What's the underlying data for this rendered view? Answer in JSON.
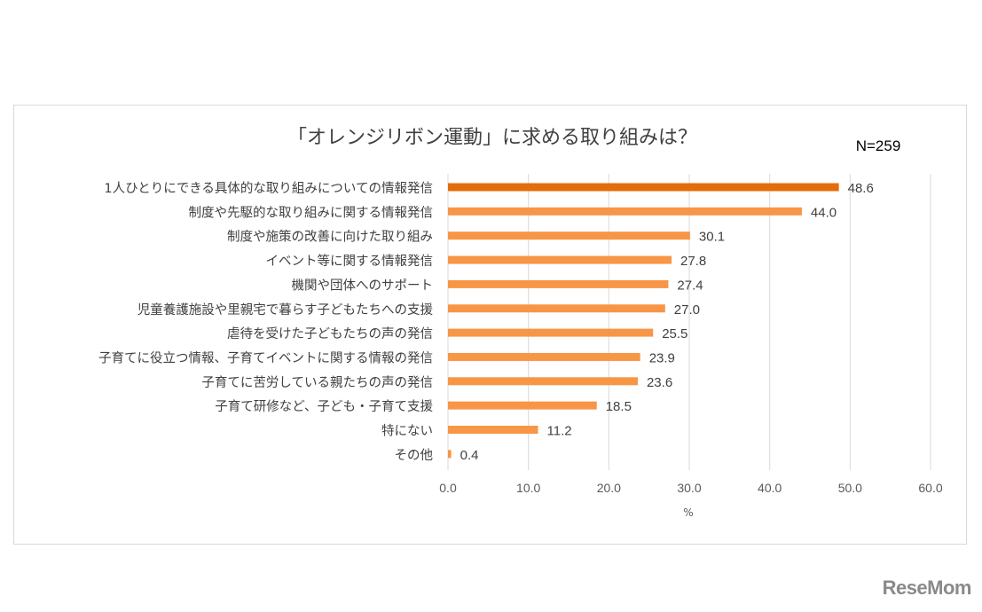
{
  "chart_data": {
    "type": "bar",
    "orientation": "horizontal",
    "title": "「オレンジリボン運動」に求める取り組みは？",
    "annotation": "N=259",
    "xlabel": "%",
    "ylabel": "",
    "xlim": [
      0,
      60
    ],
    "xticks": [
      "0.0",
      "10.0",
      "20.0",
      "30.0",
      "40.0",
      "50.0",
      "60.0"
    ],
    "grid": true,
    "categories": [
      "1人ひとりにできる具体的な取り組みについての情報発信",
      "制度や先駆的な取り組みに関する情報発信",
      "制度や施策の改善に向けた取り組み",
      "イベント等に関する情報発信",
      "機関や団体へのサポート",
      "児童養護施設や里親宅で暮らす子どもたちへの支援",
      "虐待を受けた子どもたちの声の発信",
      "子育てに役立つ情報、子育てイベントに関する情報の発信",
      "子育てに苦労している親たちの声の発信",
      "子育て研修など、子ども・子育て支援",
      "特にない",
      "その他"
    ],
    "values": [
      48.6,
      44.0,
      30.1,
      27.8,
      27.4,
      27.0,
      25.5,
      23.9,
      23.6,
      18.5,
      11.2,
      0.4
    ],
    "colors": {
      "highlight": "#E46C0A",
      "default": "#F79646",
      "grid": "#d9d9d9",
      "text": "#404040"
    }
  },
  "logo": "ReseMom"
}
